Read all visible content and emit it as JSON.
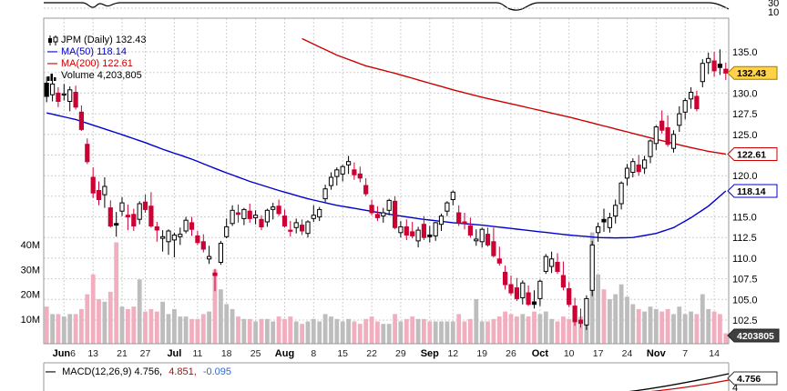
{
  "upper_panel": {
    "labels": [
      "30",
      "10"
    ]
  },
  "legend": {
    "symbol": "JPM (Daily) 132.43",
    "ma50": "MA(50) 118.14",
    "ma200": "MA(200) 122.61",
    "volume": "Volume 4,203,805"
  },
  "macd_row": {
    "label": "MACD(12,26,9) 4.756,",
    "signal": "4.851,",
    "hist": "-0.095"
  },
  "tags": {
    "last": "132.43",
    "ma200": "122.61",
    "ma50": "118.14",
    "volume": "4203805",
    "macd": "4.756",
    "macd_axis_partial": "4"
  },
  "colors": {
    "ma50": "#0000cc",
    "ma200": "#cc0000",
    "down": "#cc0033",
    "up_fill": "#ffffff",
    "candle_black": "#000000",
    "vol_up": "#bdbdbd",
    "vol_down": "#f0aebf",
    "grid": "#cfcfcf",
    "border": "#999999",
    "tag_last_bg": "#ffd24a",
    "tag_vol_bg": "#3f3f3f"
  },
  "chart_data": {
    "type": "candlestick",
    "symbol": "JPM",
    "timeframe": "Daily",
    "title": "JPM (Daily) 132.43",
    "last_price": 132.43,
    "ma50_last": 118.14,
    "ma200_last": 122.61,
    "volume_last": 4203805,
    "macd": {
      "params": [
        12,
        26,
        9
      ],
      "macd": 4.756,
      "signal": 4.851,
      "histogram": -0.095
    },
    "price_axis": {
      "min": 102.5,
      "max": 135.0,
      "step": 2.5,
      "labels": [
        {
          "p": 135.0,
          "t": "135.0"
        },
        {
          "p": 130.0,
          "t": "130.0"
        },
        {
          "p": 127.5,
          "t": "127.5"
        },
        {
          "p": 125.0,
          "t": "125.0"
        },
        {
          "p": 120.0,
          "t": "120.0"
        },
        {
          "p": 115.0,
          "t": "115.0"
        },
        {
          "p": 112.5,
          "t": "112.5"
        },
        {
          "p": 110.0,
          "t": "110.0"
        },
        {
          "p": 107.5,
          "t": "107.5"
        },
        {
          "p": 105.0,
          "t": "105.0"
        },
        {
          "p": 102.5,
          "t": "102.5"
        }
      ]
    },
    "volume_axis": {
      "unit": "millions",
      "labels": [
        {
          "v": 40,
          "t": "40M"
        },
        {
          "v": 30,
          "t": "30M"
        },
        {
          "v": 20,
          "t": "20M"
        },
        {
          "v": 10,
          "t": "10M"
        }
      ]
    },
    "x_ticks": [
      {
        "i": 3,
        "m": "Jun",
        "d": "6"
      },
      {
        "i": 8,
        "d": "13"
      },
      {
        "i": 13,
        "d": "21"
      },
      {
        "i": 17,
        "d": "27"
      },
      {
        "i": 22,
        "m": "Jul"
      },
      {
        "i": 26,
        "d": "11"
      },
      {
        "i": 31,
        "d": "18"
      },
      {
        "i": 36,
        "d": "25"
      },
      {
        "i": 41,
        "m": "Aug"
      },
      {
        "i": 46,
        "d": "8"
      },
      {
        "i": 51,
        "d": "15"
      },
      {
        "i": 56,
        "d": "22"
      },
      {
        "i": 61,
        "d": "29"
      },
      {
        "i": 66,
        "m": "Sep"
      },
      {
        "i": 70,
        "d": "12"
      },
      {
        "i": 75,
        "d": "19"
      },
      {
        "i": 80,
        "d": "26"
      },
      {
        "i": 85,
        "m": "Oct"
      },
      {
        "i": 90,
        "d": "10"
      },
      {
        "i": 95,
        "d": "17"
      },
      {
        "i": 100,
        "d": "24"
      },
      {
        "i": 105,
        "m": "Nov"
      },
      {
        "i": 110,
        "d": "7"
      },
      {
        "i": 115,
        "d": "14"
      }
    ],
    "candles": [
      [
        "Jun 1",
        131.2,
        132.0,
        128.9,
        129.6,
        15
      ],
      [
        "Jun 2",
        129.8,
        131.5,
        129.0,
        131.1,
        12
      ],
      [
        "Jun 3",
        130.0,
        130.7,
        128.3,
        129.0,
        12
      ],
      [
        "Jun 6",
        129.8,
        131.1,
        129.1,
        129.9,
        11
      ],
      [
        "Jun 7",
        129.0,
        130.8,
        127.8,
        130.4,
        12
      ],
      [
        "Jun 8",
        130.1,
        130.9,
        128.0,
        128.3,
        12
      ],
      [
        "Jun 9",
        127.7,
        128.5,
        125.4,
        125.6,
        14
      ],
      [
        "Jun 10",
        123.8,
        124.5,
        121.4,
        121.7,
        20
      ],
      [
        "Jun 13",
        119.8,
        121.0,
        117.3,
        117.9,
        28
      ],
      [
        "Jun 14",
        118.2,
        119.3,
        116.4,
        117.1,
        18
      ],
      [
        "Jun 15",
        117.7,
        119.8,
        116.1,
        118.7,
        17
      ],
      [
        "Jun 16",
        116.1,
        117.0,
        113.7,
        113.9,
        21
      ],
      [
        "Jun 17",
        114.2,
        115.6,
        112.6,
        114.0,
        41
      ],
      [
        "Jun 21",
        115.7,
        117.4,
        115.1,
        116.7,
        15
      ],
      [
        "Jun 22",
        115.2,
        116.5,
        113.4,
        115.0,
        14
      ],
      [
        "Jun 23",
        115.3,
        116.0,
        113.3,
        113.9,
        15
      ],
      [
        "Jun 24",
        114.7,
        116.9,
        114.1,
        116.6,
        26
      ],
      [
        "Jun 27",
        116.8,
        117.7,
        115.5,
        115.9,
        13
      ],
      [
        "Jun 28",
        116.3,
        118.0,
        113.7,
        113.9,
        14
      ],
      [
        "Jun 29",
        113.8,
        114.4,
        112.0,
        113.4,
        13
      ],
      [
        "Jun 30",
        112.4,
        113.4,
        110.8,
        112.6,
        17
      ],
      [
        "Jul 1",
        112.0,
        113.5,
        110.4,
        113.3,
        12
      ],
      [
        "Jul 5",
        112.2,
        113.1,
        110.1,
        112.8,
        14
      ],
      [
        "Jul 6",
        112.6,
        113.7,
        111.6,
        112.9,
        11
      ],
      [
        "Jul 7",
        113.3,
        115.0,
        113.0,
        114.6,
        11
      ],
      [
        "Jul 8",
        114.3,
        115.0,
        112.7,
        113.5,
        10
      ],
      [
        "Jul 11",
        112.7,
        113.3,
        111.6,
        111.9,
        10
      ],
      [
        "Jul 12",
        112.0,
        112.9,
        110.7,
        111.1,
        12
      ],
      [
        "Jul 13",
        109.9,
        111.5,
        109.3,
        110.2,
        13
      ],
      [
        "Jul 14",
        108.2,
        108.7,
        106.0,
        107.9,
        30
      ],
      [
        "Jul 15",
        109.5,
        112.1,
        109.2,
        111.8,
        22
      ],
      [
        "Jul 18",
        112.6,
        114.8,
        112.4,
        113.8,
        16
      ],
      [
        "Jul 19",
        114.2,
        116.4,
        113.9,
        115.8,
        14
      ],
      [
        "Jul 20",
        115.5,
        116.5,
        114.3,
        115.3,
        11
      ],
      [
        "Jul 21",
        114.8,
        116.1,
        114.0,
        115.9,
        10
      ],
      [
        "Jul 22",
        115.7,
        116.6,
        114.3,
        114.8,
        10
      ],
      [
        "Jul 25",
        114.9,
        115.8,
        114.1,
        115.2,
        9
      ],
      [
        "Jul 26",
        114.7,
        115.2,
        113.4,
        113.8,
        10
      ],
      [
        "Jul 27",
        114.4,
        116.0,
        113.8,
        115.8,
        10
      ],
      [
        "Jul 28",
        115.9,
        116.7,
        114.7,
        116.2,
        9
      ],
      [
        "Jul 29",
        116.3,
        117.1,
        115.1,
        115.4,
        11
      ],
      [
        "Aug 1",
        115.1,
        115.9,
        113.7,
        113.9,
        10
      ],
      [
        "Aug 2",
        113.4,
        114.5,
        112.6,
        113.3,
        11
      ],
      [
        "Aug 3",
        113.7,
        114.8,
        113.0,
        114.3,
        9
      ],
      [
        "Aug 4",
        114.0,
        114.7,
        112.8,
        113.3,
        8
      ],
      [
        "Aug 5",
        113.0,
        114.6,
        112.5,
        114.4,
        9
      ],
      [
        "Aug 8",
        114.8,
        116.4,
        114.4,
        115.2,
        10
      ],
      [
        "Aug 9",
        115.0,
        116.2,
        114.5,
        115.9,
        9
      ],
      [
        "Aug 10",
        117.2,
        118.9,
        116.8,
        118.4,
        12
      ],
      [
        "Aug 11",
        118.8,
        120.4,
        118.3,
        119.8,
        11
      ],
      [
        "Aug 12",
        119.9,
        121.0,
        118.8,
        120.7,
        10
      ],
      [
        "Aug 15",
        120.2,
        121.3,
        119.3,
        121.1,
        9
      ],
      [
        "Aug 16",
        121.3,
        122.4,
        120.2,
        121.7,
        10
      ],
      [
        "Aug 17",
        120.7,
        121.6,
        119.5,
        120.1,
        9
      ],
      [
        "Aug 18",
        120.2,
        121.1,
        119.2,
        119.7,
        8
      ],
      [
        "Aug 19",
        118.8,
        119.7,
        117.5,
        117.8,
        10
      ],
      [
        "Aug 22",
        116.4,
        117.1,
        115.2,
        115.5,
        11
      ],
      [
        "Aug 23",
        115.3,
        116.3,
        114.5,
        114.9,
        9
      ],
      [
        "Aug 24",
        115.1,
        116.1,
        114.3,
        115.5,
        8
      ],
      [
        "Aug 25",
        115.8,
        117.2,
        115.2,
        117.0,
        8
      ],
      [
        "Aug 26",
        116.9,
        117.5,
        113.5,
        113.7,
        12
      ],
      [
        "Aug 29",
        113.1,
        114.5,
        112.5,
        113.8,
        9
      ],
      [
        "Aug 30",
        113.8,
        114.7,
        112.2,
        112.8,
        10
      ],
      [
        "Aug 31",
        113.2,
        114.4,
        112.4,
        112.7,
        11
      ],
      [
        "Sep 1",
        112.1,
        113.8,
        111.3,
        113.4,
        10
      ],
      [
        "Sep 2",
        114.1,
        115.1,
        112.2,
        112.5,
        10
      ],
      [
        "Sep 6",
        112.8,
        113.9,
        111.9,
        112.6,
        9
      ],
      [
        "Sep 7",
        112.7,
        114.4,
        112.1,
        114.3,
        9
      ],
      [
        "Sep 8",
        114.1,
        115.4,
        113.3,
        115.1,
        9
      ],
      [
        "Sep 9",
        115.7,
        116.9,
        115.1,
        116.7,
        9
      ],
      [
        "Sep 12",
        117.1,
        118.2,
        116.4,
        118.0,
        9
      ],
      [
        "Sep 13",
        115.5,
        116.4,
        113.9,
        114.3,
        12
      ],
      [
        "Sep 14",
        114.4,
        115.5,
        113.5,
        114.2,
        9
      ],
      [
        "Sep 15",
        113.9,
        114.9,
        112.5,
        112.8,
        10
      ],
      [
        "Sep 16",
        112.1,
        113.5,
        111.5,
        112.3,
        18
      ],
      [
        "Sep 19",
        112.0,
        113.7,
        111.3,
        113.5,
        9
      ],
      [
        "Sep 20",
        112.9,
        113.7,
        111.4,
        111.6,
        9
      ],
      [
        "Sep 21",
        112.0,
        113.7,
        110.1,
        110.3,
        10
      ],
      [
        "Sep 22",
        109.9,
        111.4,
        109.1,
        109.4,
        11
      ],
      [
        "Sep 23",
        108.3,
        109.1,
        106.2,
        106.8,
        13
      ],
      [
        "Sep 26",
        106.8,
        107.9,
        105.5,
        105.8,
        12
      ],
      [
        "Sep 27",
        106.4,
        107.6,
        104.8,
        105.1,
        11
      ],
      [
        "Sep 28",
        105.2,
        107.3,
        104.4,
        107.0,
        12
      ],
      [
        "Sep 29",
        105.8,
        106.7,
        104.2,
        104.4,
        11
      ],
      [
        "Sep 30",
        104.7,
        106.1,
        103.9,
        104.4,
        13
      ],
      [
        "Oct 3",
        105.1,
        107.4,
        104.2,
        107.2,
        12
      ],
      [
        "Oct 4",
        108.4,
        110.5,
        108.1,
        110.2,
        13
      ],
      [
        "Oct 5",
        109.0,
        110.8,
        108.2,
        109.9,
        10
      ],
      [
        "Oct 6",
        109.5,
        110.6,
        108.1,
        108.4,
        9
      ],
      [
        "Oct 7",
        107.9,
        109.6,
        106.1,
        106.5,
        11
      ],
      [
        "Oct 10",
        106.3,
        107.1,
        104.1,
        104.4,
        10
      ],
      [
        "Oct 11",
        104.2,
        105.2,
        101.8,
        102.3,
        13
      ],
      [
        "Oct 12",
        102.5,
        103.9,
        101.6,
        102.1,
        11
      ],
      [
        "Oct 13",
        101.9,
        105.5,
        101.3,
        105.1,
        16
      ],
      [
        "Oct 14",
        106.1,
        112.1,
        105.4,
        111.6,
        45
      ],
      [
        "Oct 17",
        113.1,
        114.3,
        112.0,
        113.8,
        28
      ],
      [
        "Oct 18",
        114.7,
        116.0,
        113.2,
        114.4,
        22
      ],
      [
        "Oct 19",
        113.7,
        115.5,
        113.1,
        114.9,
        18
      ],
      [
        "Oct 20",
        115.1,
        117.1,
        114.2,
        116.4,
        20
      ],
      [
        "Oct 21",
        116.6,
        119.3,
        115.9,
        119.1,
        24
      ],
      [
        "Oct 24",
        119.7,
        121.4,
        118.8,
        120.9,
        19
      ],
      [
        "Oct 25",
        120.4,
        122.1,
        119.8,
        121.7,
        16
      ],
      [
        "Oct 26",
        121.3,
        122.5,
        120.0,
        120.5,
        14
      ],
      [
        "Oct 27",
        120.9,
        122.4,
        120.2,
        121.9,
        13
      ],
      [
        "Oct 28",
        122.3,
        124.4,
        121.5,
        124.2,
        15
      ],
      [
        "Oct 31",
        123.9,
        126.1,
        123.1,
        125.9,
        14
      ],
      [
        "Nov 1",
        126.6,
        127.9,
        125.1,
        125.5,
        13
      ],
      [
        "Nov 2",
        125.8,
        127.3,
        123.5,
        123.8,
        14
      ],
      [
        "Nov 3",
        123.3,
        125.5,
        122.8,
        125.0,
        12
      ],
      [
        "Nov 4",
        126.1,
        128.4,
        125.3,
        127.5,
        15
      ],
      [
        "Nov 7",
        127.7,
        129.4,
        126.8,
        129.1,
        12
      ],
      [
        "Nov 8",
        129.3,
        130.7,
        128.1,
        130.1,
        13
      ],
      [
        "Nov 9",
        129.6,
        130.3,
        127.8,
        128.1,
        12
      ],
      [
        "Nov 10",
        131.4,
        134.1,
        130.7,
        133.6,
        20
      ],
      [
        "Nov 11",
        133.7,
        134.9,
        132.3,
        134.2,
        14
      ],
      [
        "Nov 14",
        133.9,
        135.0,
        132.0,
        132.7,
        13
      ],
      [
        "Nov 15",
        133.5,
        135.3,
        132.2,
        133.1,
        12
      ],
      [
        "Nov 16",
        132.9,
        133.7,
        131.6,
        132.43,
        4.2
      ]
    ],
    "ma50_anchors": [
      [
        0,
        127.6
      ],
      [
        5,
        126.8
      ],
      [
        12,
        125.2
      ],
      [
        17,
        124.0
      ],
      [
        20,
        123.2
      ],
      [
        25,
        122.0
      ],
      [
        30,
        120.6
      ],
      [
        35,
        119.3
      ],
      [
        40,
        118.2
      ],
      [
        45,
        117.2
      ],
      [
        50,
        116.4
      ],
      [
        55,
        115.8
      ],
      [
        60,
        115.2
      ],
      [
        65,
        114.7
      ],
      [
        70,
        114.3
      ],
      [
        75,
        114.0
      ],
      [
        80,
        113.6
      ],
      [
        85,
        113.2
      ],
      [
        90,
        112.8
      ],
      [
        95,
        112.5
      ],
      [
        98,
        112.45
      ],
      [
        101,
        112.5
      ],
      [
        105,
        113.0
      ],
      [
        108,
        113.7
      ],
      [
        111,
        114.9
      ],
      [
        114,
        116.3
      ],
      [
        117,
        118.14
      ]
    ],
    "ma200_anchors": [
      [
        38,
        140.5
      ],
      [
        44,
        136.6
      ],
      [
        50,
        134.6
      ],
      [
        55,
        133.3
      ],
      [
        60,
        132.4
      ],
      [
        65,
        131.4
      ],
      [
        70,
        130.4
      ],
      [
        75,
        129.5
      ],
      [
        80,
        128.7
      ],
      [
        85,
        127.9
      ],
      [
        90,
        127.1
      ],
      [
        95,
        126.2
      ],
      [
        100,
        125.3
      ],
      [
        105,
        124.4
      ],
      [
        108,
        123.9
      ],
      [
        111,
        123.4
      ],
      [
        114,
        122.95
      ],
      [
        117,
        122.61
      ]
    ]
  }
}
